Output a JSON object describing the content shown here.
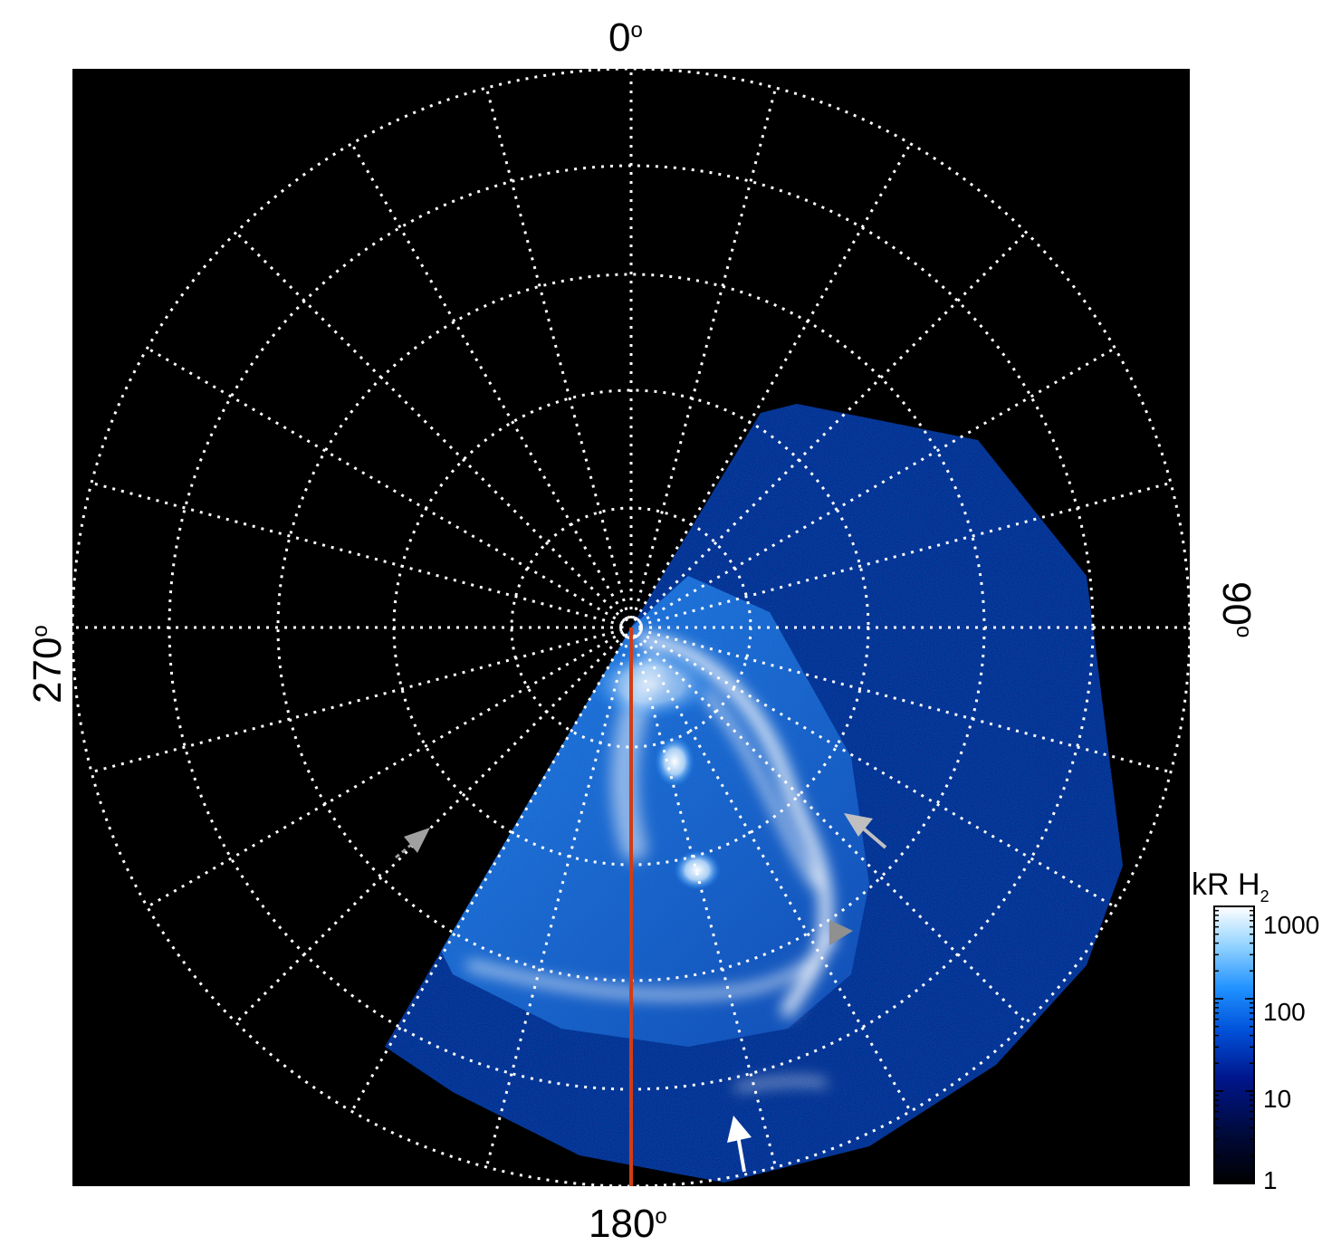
{
  "labels": {
    "top": "0",
    "bottom": "180",
    "left": "270",
    "right": "90",
    "degree_symbol": "o"
  },
  "colorbar": {
    "title_main": "kR H",
    "title_sub": "2",
    "ticks": [
      "1000",
      "100",
      "10",
      "1"
    ],
    "colors": [
      "#000000",
      "#000a3a",
      "#00168c",
      "#0050d8",
      "#1e90ff",
      "#8cd0ff",
      "#ffffff"
    ]
  },
  "colors": {
    "background": "#000000",
    "grid": "#ffffff",
    "meridian": "#d23c14",
    "arrow_white": "#ffffff",
    "arrow_gray": "#a0a0a0"
  }
}
